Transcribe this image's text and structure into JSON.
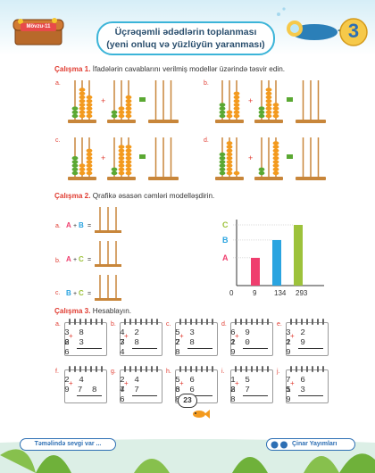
{
  "header": {
    "badge": "Mövzu-11",
    "title_line1": "Üçrəqəmli ədədlərin toplanması",
    "title_line2": "(yeni onluq və yüzlüyün yaranması)",
    "diver_number": "3"
  },
  "sections": {
    "s1": {
      "label": "Çalışma 1.",
      "text": " İfadələrin cavablarını verilmiş modellər üzərində təsvir edin."
    },
    "s2": {
      "label": "Çalışma 2.",
      "text": " Qrafikə əsasən cəmləri modelləşdirin."
    },
    "s3": {
      "label": "Çalışma 3.",
      "text": " Hesablayın."
    }
  },
  "ex1_labels": [
    "a.",
    "b.",
    "c.",
    "d."
  ],
  "ex2": {
    "labels": [
      "a.",
      "b.",
      "c."
    ],
    "letters": [
      "A",
      "B",
      "C"
    ],
    "plus": "+",
    "equals": "=",
    "chart_data": {
      "type": "bar",
      "categories": [
        "A",
        "B",
        "C"
      ],
      "values": [
        134,
        220,
        293
      ],
      "tick_labels": [
        "0",
        "9",
        "134",
        "293"
      ],
      "colors": [
        "#ef3e6e",
        "#2aa4e0",
        "#9dc23b"
      ]
    }
  },
  "ex3": {
    "cards": [
      {
        "label": "a.",
        "top": "3 8 6",
        "bottom": "2 3 6"
      },
      {
        "label": "b.",
        "top": "4 2 7",
        "bottom": "3 8 4"
      },
      {
        "label": "c.",
        "top": "5 3 7",
        "bottom": "2 8 8"
      },
      {
        "label": "d.",
        "top": "6 9 1",
        "bottom": "2 0 9"
      },
      {
        "label": "e.",
        "top": "3 2 2",
        "bottom": "1 9 9"
      },
      {
        "label": "f.",
        "top": "2 4 9",
        "bottom": "7 8"
      },
      {
        "label": "g.",
        "top": "2 4 7",
        "bottom": "4 7 6"
      },
      {
        "label": "h.",
        "top": "5 6 6",
        "bottom": "3 6 8"
      },
      {
        "label": "i.",
        "top": "1 5 8",
        "bottom": "2 7 8"
      },
      {
        "label": "j.",
        "top": "7 6 5",
        "bottom": "1 3 9"
      }
    ],
    "plus": "+"
  },
  "footer": {
    "left": "Təməlində sevgi var ...",
    "right": "Çinar Yayımları",
    "page": "23"
  }
}
